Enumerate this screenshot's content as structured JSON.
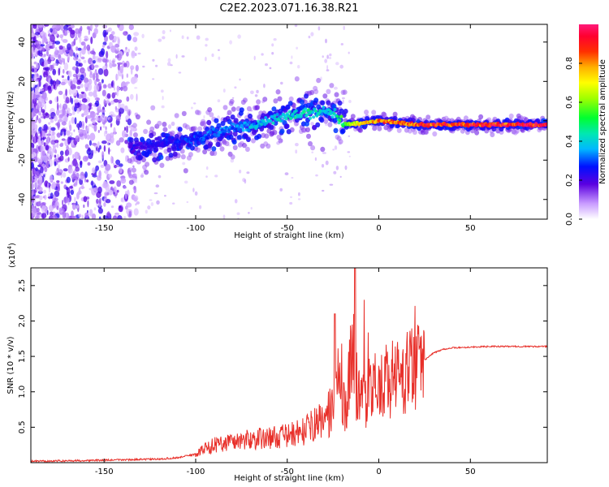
{
  "title": "C2E2.2023.071.16.38.R21",
  "colors": {
    "axis": "#000000",
    "snr_line": "#e8302a",
    "band": "#6a1bd8",
    "background": "#ffffff"
  },
  "chart_data": [
    {
      "type": "heatmap",
      "xlabel": "Height of straight line (km)",
      "ylabel": "Frequency (Hz)",
      "xlim": [
        -190,
        92
      ],
      "ylim": [
        -50,
        49
      ],
      "xticks": [
        -150,
        -100,
        -50,
        0,
        50
      ],
      "yticks": [
        40,
        20,
        0,
        -20,
        -40
      ],
      "colorbar": {
        "label": "Normalized spectral amplitude",
        "range": [
          0,
          1
        ],
        "ticks": [
          0.0,
          0.2,
          0.4,
          0.6,
          0.8
        ]
      },
      "signal_band": [
        {
          "x": -135,
          "freq": -14,
          "amplitude": 0.2
        },
        {
          "x": -120,
          "freq": -12,
          "amplitude": 0.25
        },
        {
          "x": -100,
          "freq": -9,
          "amplitude": 0.3
        },
        {
          "x": -80,
          "freq": -4,
          "amplitude": 0.35
        },
        {
          "x": -60,
          "freq": 0,
          "amplitude": 0.4
        },
        {
          "x": -40,
          "freq": 4,
          "amplitude": 0.45
        },
        {
          "x": -25,
          "freq": 5,
          "amplitude": 0.4
        },
        {
          "x": -18,
          "freq": -2,
          "amplitude": 0.6
        },
        {
          "x": 0,
          "freq": 0,
          "amplitude": 0.85
        },
        {
          "x": 20,
          "freq": -2,
          "amplitude": 0.9
        },
        {
          "x": 50,
          "freq": -2,
          "amplitude": 0.95
        },
        {
          "x": 92,
          "freq": -2,
          "amplitude": 0.95
        }
      ]
    },
    {
      "type": "line",
      "xlabel": "Height of straight line (km)",
      "ylabel": "SNR (10 * v/v)",
      "yscale_label": "(x10",
      "yscale_exp": "4",
      "yscale_close": ")",
      "xlim": [
        -190,
        92
      ],
      "ylim": [
        0,
        2.75
      ],
      "xticks": [
        -150,
        -100,
        -50,
        0,
        50
      ],
      "yticks": [
        2.5,
        2.0,
        1.5,
        1.0,
        0.5
      ],
      "ytick_labels": [
        "2.5",
        "2.0",
        "1.5",
        "1.0",
        "0.5"
      ],
      "series": [
        {
          "x": [
            -190,
            -160,
            -140,
            -120,
            -110,
            -100,
            -95,
            -90,
            -80,
            -70,
            -60,
            -50,
            -40,
            -35,
            -30,
            -25,
            -22,
            -20,
            -18,
            -16,
            -14,
            -12,
            -10,
            -8,
            -5,
            0,
            5,
            10,
            15,
            20,
            25,
            30,
            35,
            40,
            50,
            60,
            70,
            80,
            92
          ],
          "values": [
            0.02,
            0.03,
            0.04,
            0.05,
            0.07,
            0.12,
            0.2,
            0.25,
            0.3,
            0.33,
            0.35,
            0.38,
            0.45,
            0.55,
            0.6,
            0.8,
            1.2,
            1.0,
            0.7,
            1.3,
            1.5,
            1.1,
            0.9,
            1.0,
            0.95,
            1.1,
            1.15,
            1.2,
            1.25,
            1.3,
            1.45,
            1.55,
            1.6,
            1.62,
            1.63,
            1.64,
            1.64,
            1.64,
            1.64
          ]
        }
      ]
    }
  ]
}
